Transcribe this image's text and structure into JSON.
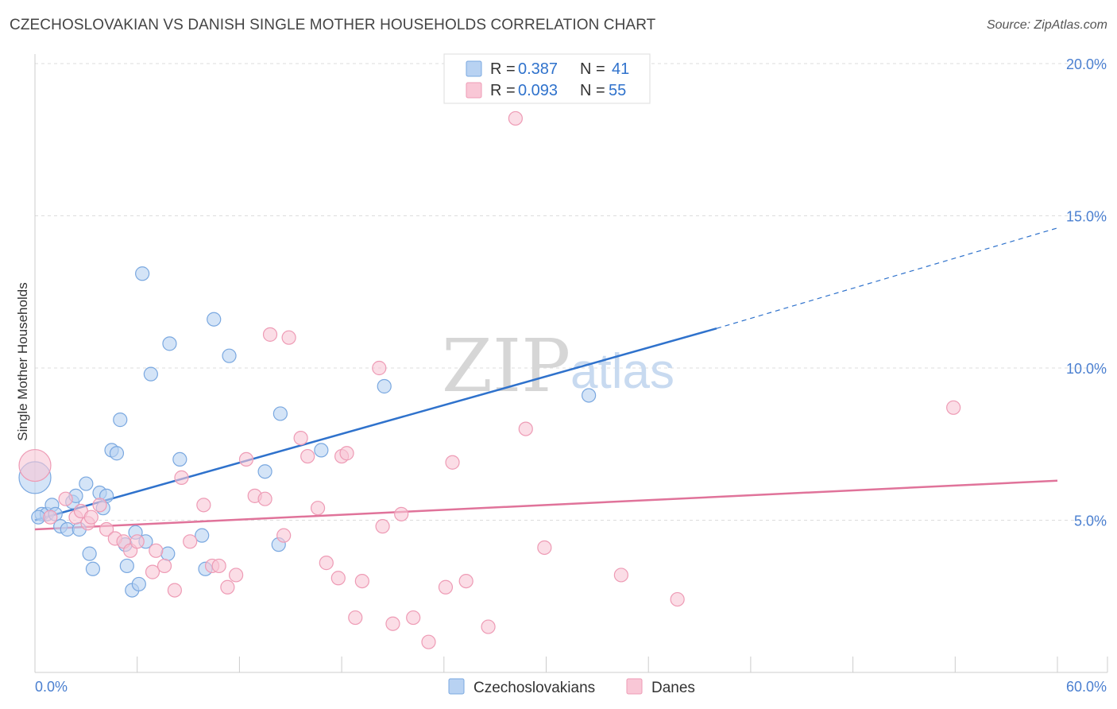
{
  "title": "CZECHOSLOVAKIAN VS DANISH SINGLE MOTHER HOUSEHOLDS CORRELATION CHART",
  "source": "Source: ZipAtlas.com",
  "watermark": {
    "zip": "ZIP",
    "atlas": "atlas"
  },
  "colors": {
    "blue_fill": "#b8d2f2",
    "blue_stroke": "#7aa8e0",
    "blue_line": "#2f72cc",
    "pink_fill": "#f9c7d6",
    "pink_stroke": "#ee9bb5",
    "pink_line": "#e0739a",
    "value_text": "#2f72cc",
    "grid": "#dddddd"
  },
  "legend_top": {
    "rows": [
      {
        "series": "Czechoslovakians",
        "r_label": "R =",
        "r_value": "0.387",
        "n_label": "N =",
        "n_value": "41"
      },
      {
        "series": "Danes",
        "r_label": "R =",
        "r_value": "0.093",
        "n_label": "N =",
        "n_value": "55"
      }
    ]
  },
  "legend_bottom": {
    "items": [
      {
        "label": "Czechoslovakians"
      },
      {
        "label": "Danes"
      }
    ]
  },
  "chart_data": {
    "type": "scatter",
    "title": "CZECHOSLOVAKIAN VS DANISH SINGLE MOTHER HOUSEHOLDS CORRELATION CHART",
    "xlabel": "",
    "ylabel": "Single Mother Households",
    "xlim": [
      0,
      60
    ],
    "ylim": [
      0,
      20
    ],
    "x_tick_labels": [
      "0.0%",
      "60.0%"
    ],
    "y_ticks": [
      5,
      10,
      15,
      20
    ],
    "y_tick_labels": [
      "5.0%",
      "10.0%",
      "15.0%",
      "20.0%"
    ],
    "grid": true,
    "legend_position": "top-center",
    "series": [
      {
        "name": "Czechoslovakians",
        "r": 0.387,
        "n": 41,
        "trend": {
          "x0": 0,
          "y0": 5.0,
          "x1": 40,
          "y1": 11.3,
          "dashed_to_x": 60,
          "dashed_to_y": 14.6
        },
        "points": [
          [
            0.0,
            6.4
          ],
          [
            0.4,
            5.2
          ],
          [
            0.7,
            5.2
          ],
          [
            1.0,
            5.5
          ],
          [
            1.2,
            5.2
          ],
          [
            1.5,
            4.8
          ],
          [
            1.9,
            4.7
          ],
          [
            2.2,
            5.6
          ],
          [
            2.4,
            5.8
          ],
          [
            2.6,
            4.7
          ],
          [
            3.0,
            6.2
          ],
          [
            3.2,
            3.9
          ],
          [
            3.4,
            3.4
          ],
          [
            3.8,
            5.9
          ],
          [
            4.0,
            5.4
          ],
          [
            4.2,
            5.8
          ],
          [
            4.5,
            7.3
          ],
          [
            4.8,
            7.2
          ],
          [
            5.0,
            8.3
          ],
          [
            5.3,
            4.2
          ],
          [
            5.4,
            3.5
          ],
          [
            5.7,
            2.7
          ],
          [
            5.9,
            4.6
          ],
          [
            6.1,
            2.9
          ],
          [
            6.3,
            13.1
          ],
          [
            6.5,
            4.3
          ],
          [
            6.8,
            9.8
          ],
          [
            7.8,
            3.9
          ],
          [
            7.9,
            10.8
          ],
          [
            8.5,
            7.0
          ],
          [
            9.8,
            4.5
          ],
          [
            10.0,
            3.4
          ],
          [
            10.5,
            11.6
          ],
          [
            11.4,
            10.4
          ],
          [
            13.5,
            6.6
          ],
          [
            14.4,
            8.5
          ],
          [
            14.3,
            4.2
          ],
          [
            16.8,
            7.3
          ],
          [
            20.5,
            9.4
          ],
          [
            32.5,
            9.1
          ],
          [
            0.2,
            5.1
          ]
        ]
      },
      {
        "name": "Danes",
        "r": 0.093,
        "n": 55,
        "trend": {
          "x0": 0,
          "y0": 4.7,
          "x1": 60,
          "y1": 6.3
        },
        "points": [
          [
            0.0,
            6.8
          ],
          [
            0.9,
            5.1
          ],
          [
            1.8,
            5.7
          ],
          [
            2.4,
            5.1
          ],
          [
            2.7,
            5.3
          ],
          [
            3.1,
            4.9
          ],
          [
            3.3,
            5.1
          ],
          [
            3.8,
            5.5
          ],
          [
            4.2,
            4.7
          ],
          [
            4.7,
            4.4
          ],
          [
            5.2,
            4.3
          ],
          [
            5.6,
            4.0
          ],
          [
            6.0,
            4.3
          ],
          [
            6.9,
            3.3
          ],
          [
            7.1,
            4.0
          ],
          [
            7.6,
            3.5
          ],
          [
            8.2,
            2.7
          ],
          [
            8.6,
            6.4
          ],
          [
            9.1,
            4.3
          ],
          [
            9.9,
            5.5
          ],
          [
            10.4,
            3.5
          ],
          [
            10.8,
            3.5
          ],
          [
            11.3,
            2.8
          ],
          [
            11.8,
            3.2
          ],
          [
            12.4,
            7.0
          ],
          [
            12.9,
            5.8
          ],
          [
            13.5,
            5.7
          ],
          [
            13.8,
            11.1
          ],
          [
            14.6,
            4.5
          ],
          [
            14.9,
            11.0
          ],
          [
            15.6,
            7.7
          ],
          [
            16.0,
            7.1
          ],
          [
            16.6,
            5.4
          ],
          [
            17.1,
            3.6
          ],
          [
            17.8,
            3.1
          ],
          [
            18.0,
            7.1
          ],
          [
            18.3,
            7.2
          ],
          [
            18.8,
            1.8
          ],
          [
            19.2,
            3.0
          ],
          [
            20.2,
            10.0
          ],
          [
            20.4,
            4.8
          ],
          [
            21.0,
            1.6
          ],
          [
            21.5,
            5.2
          ],
          [
            22.2,
            1.8
          ],
          [
            23.1,
            1.0
          ],
          [
            24.1,
            2.8
          ],
          [
            24.5,
            6.9
          ],
          [
            25.3,
            3.0
          ],
          [
            26.6,
            1.5
          ],
          [
            28.2,
            18.2
          ],
          [
            28.8,
            8.0
          ],
          [
            29.9,
            4.1
          ],
          [
            34.4,
            3.2
          ],
          [
            37.7,
            2.4
          ],
          [
            53.9,
            8.7
          ]
        ]
      }
    ]
  }
}
